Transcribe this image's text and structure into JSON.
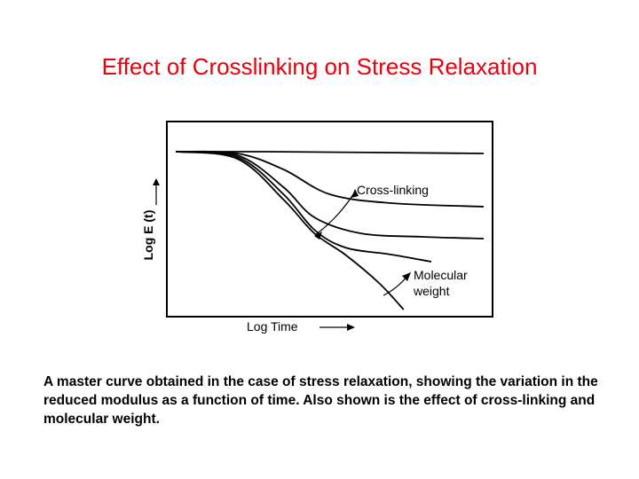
{
  "slide": {
    "title": "Effect of Crosslinking on Stress Relaxation",
    "caption": "A master curve obtained in the case of stress relaxation, showing the variation in the reduced modulus as a function of time. Also shown is the effect of cross-linking and molecular weight."
  },
  "chart_data": {
    "type": "line",
    "xlabel": "Log Time",
    "ylabel": "Log E (t)",
    "grid": false,
    "x_ticks": [],
    "y_ticks": [],
    "annotations": [
      "Cross-linking",
      "Molecular weight"
    ],
    "series": [
      {
        "values": [
          [
            0.0,
            0.92
          ],
          [
            0.3,
            0.92
          ],
          [
            1.0,
            0.91
          ]
        ]
      },
      {
        "values": [
          [
            0.0,
            0.92
          ],
          [
            0.2,
            0.91
          ],
          [
            0.35,
            0.82
          ],
          [
            0.5,
            0.68
          ],
          [
            0.7,
            0.63
          ],
          [
            1.0,
            0.61
          ]
        ]
      },
      {
        "values": [
          [
            0.0,
            0.92
          ],
          [
            0.2,
            0.9
          ],
          [
            0.35,
            0.72
          ],
          [
            0.45,
            0.55
          ],
          [
            0.6,
            0.46
          ],
          [
            0.8,
            0.44
          ],
          [
            1.0,
            0.43
          ]
        ]
      },
      {
        "values": [
          [
            0.0,
            0.92
          ],
          [
            0.2,
            0.89
          ],
          [
            0.35,
            0.68
          ],
          [
            0.45,
            0.48
          ],
          [
            0.55,
            0.38
          ],
          [
            0.7,
            0.34
          ],
          [
            0.83,
            0.3
          ]
        ]
      },
      {
        "values": [
          [
            0.0,
            0.92
          ],
          [
            0.2,
            0.88
          ],
          [
            0.35,
            0.65
          ],
          [
            0.45,
            0.46
          ],
          [
            0.55,
            0.34
          ],
          [
            0.66,
            0.18
          ],
          [
            0.74,
            0.03
          ]
        ]
      }
    ]
  }
}
